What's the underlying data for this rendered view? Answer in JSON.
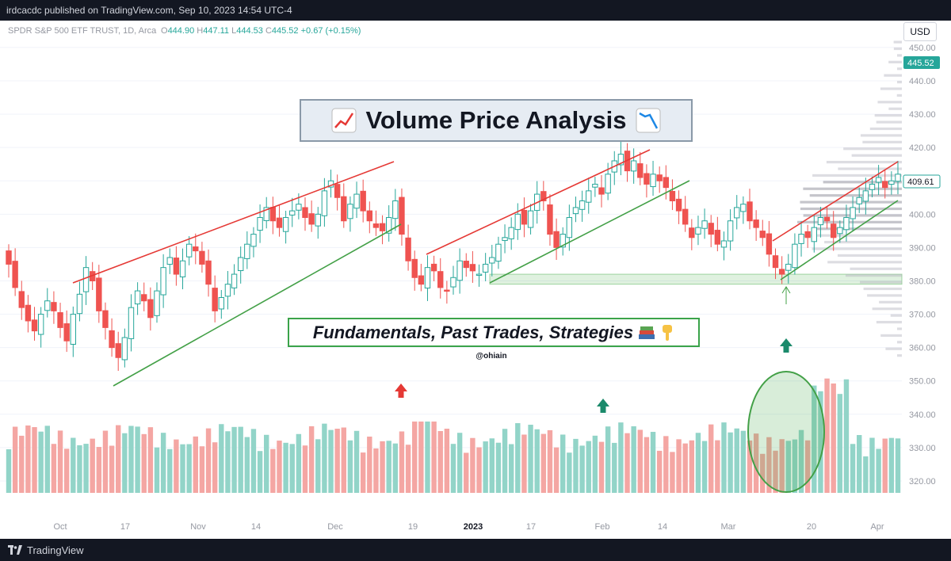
{
  "header": {
    "published": "irdcacdc published on TradingView.com, Sep 10, 2023 14:54 UTC-4"
  },
  "footer": {
    "brand": "TradingView"
  },
  "chart_data": {
    "type": "candlestick",
    "symbol": "SPDR S&P 500 ETF TRUST, 1D, Arca",
    "ohlc_label": {
      "o": "O",
      "ov": "444.90",
      "h": "H",
      "hv": "447.11",
      "l": "L",
      "lv": "444.53",
      "c": "C",
      "cv": "445.52",
      "chg": "+0.67 (+0.15%)"
    },
    "currency": "USD",
    "last_price_label": "445.52",
    "marker_price_label": "409.61",
    "y_ticks": [
      320,
      330,
      340,
      350,
      360,
      370,
      380,
      390,
      400,
      410,
      420,
      430,
      440,
      450
    ],
    "y_tick_labels": [
      "320.00",
      "330.00",
      "340.00",
      "350.00",
      "360.00",
      "370.00",
      "380.00",
      "390.00",
      "400.00",
      "410.00",
      "420.00",
      "430.00",
      "440.00",
      "450.00"
    ],
    "x_ticks": [
      {
        "label": "Oct",
        "bold": false
      },
      {
        "label": "17",
        "bold": false
      },
      {
        "label": "Nov",
        "bold": false
      },
      {
        "label": "14",
        "bold": false
      },
      {
        "label": "Dec",
        "bold": false
      },
      {
        "label": "19",
        "bold": false
      },
      {
        "label": "2023",
        "bold": true
      },
      {
        "label": "17",
        "bold": false
      },
      {
        "label": "Feb",
        "bold": false
      },
      {
        "label": "14",
        "bold": false
      },
      {
        "label": "Mar",
        "bold": false
      },
      {
        "label": "20",
        "bold": false
      },
      {
        "label": "Apr",
        "bold": false
      }
    ],
    "colors": {
      "up": "#26a69a",
      "down": "#ef5350",
      "vol_up": "#92d4c8",
      "vol_down": "#f4a6a3",
      "resistance": "#e53935",
      "support": "#43a047"
    },
    "closes": [
      385,
      378,
      372,
      368,
      365,
      370,
      374,
      371,
      366,
      362,
      370,
      376,
      384,
      380,
      371,
      366,
      360,
      357,
      363,
      372,
      377,
      374,
      369,
      377,
      384,
      387,
      382,
      386,
      391,
      389,
      385,
      379,
      371,
      375,
      379,
      382,
      387,
      391,
      394,
      399,
      402,
      398,
      396,
      399,
      401,
      403,
      399,
      397,
      400,
      407,
      410,
      405,
      398,
      403,
      406,
      401,
      398,
      396,
      395,
      399,
      404,
      394,
      386,
      381,
      379,
      384,
      383,
      378,
      377,
      381,
      386,
      384,
      383,
      382,
      385,
      387,
      391,
      393,
      396,
      400,
      397,
      401,
      406,
      404,
      394,
      390,
      394,
      399,
      402,
      404,
      407,
      409,
      406,
      412,
      416,
      418,
      413,
      416,
      411,
      409,
      412,
      410,
      408,
      404,
      401,
      397,
      393,
      396,
      398,
      394,
      391,
      392,
      398,
      402,
      403,
      398,
      396,
      393,
      388,
      384,
      382,
      385,
      391,
      394,
      393,
      396,
      399,
      398,
      393,
      396,
      399,
      402,
      405,
      407,
      409,
      411,
      408,
      410,
      412
    ],
    "annotations": {
      "title": "Volume Price Analysis",
      "subtitle": "Fundamentals, Past Trades, Strategies",
      "handle": "@ohiain"
    }
  }
}
